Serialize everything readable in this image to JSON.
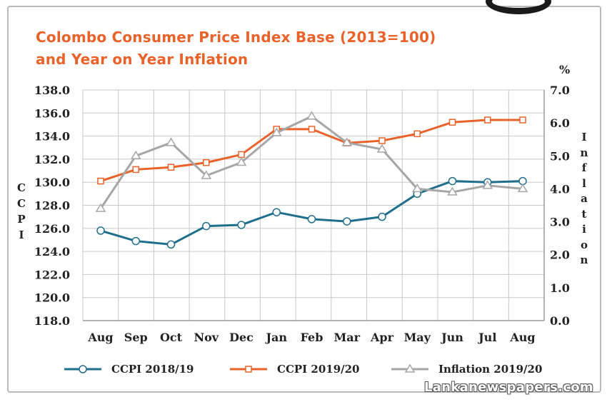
{
  "title_line1": "Colombo Consumer Price Index Base (2013=100)",
  "title_line2": "and Year on Year Inflation",
  "watermark": "Lankanewspapers.com",
  "colors": {
    "title": "#e8622a",
    "ccpi_2018_19": "#1f6e8c",
    "ccpi_2019_20": "#e8622a",
    "inflation_2019_20": "#a6a6a6",
    "grid": "#c8c8c8"
  },
  "chart_data": {
    "type": "line",
    "title": "Colombo Consumer Price Index Base (2013=100) and Year on Year Inflation",
    "categories": [
      "Aug",
      "Sep",
      "Oct",
      "Nov",
      "Dec",
      "Jan",
      "Feb",
      "Mar",
      "Apr",
      "May",
      "Jun",
      "Jul",
      "Aug"
    ],
    "ylabel": "CCPI",
    "ylabel_right": "Inflation",
    "y_right_unit": "%",
    "ylim": [
      118.0,
      138.0
    ],
    "y_ticks": [
      "118.0",
      "120.0",
      "122.0",
      "124.0",
      "126.0",
      "128.0",
      "130.0",
      "132.0",
      "134.0",
      "136.0",
      "138.0"
    ],
    "ylim_right": [
      0.0,
      7.0
    ],
    "y_right_ticks": [
      "0.0",
      "1.0",
      "2.0",
      "3.0",
      "4.0",
      "5.0",
      "6.0",
      "7.0"
    ],
    "grid": true,
    "legend_position": "bottom",
    "series": [
      {
        "name": "CCPI 2018/19",
        "axis": "left",
        "marker": "circle",
        "color": "#1f6e8c",
        "values": [
          125.8,
          124.9,
          124.6,
          126.2,
          126.3,
          127.4,
          126.8,
          126.6,
          127.0,
          129.0,
          130.1,
          130.0,
          130.1
        ]
      },
      {
        "name": "CCPI 2019/20",
        "axis": "left",
        "marker": "square",
        "color": "#e8622a",
        "values": [
          130.1,
          131.1,
          131.3,
          131.7,
          132.4,
          134.6,
          134.6,
          133.4,
          133.6,
          134.2,
          135.2,
          135.4,
          135.4
        ]
      },
      {
        "name": "Inflation 2019/20",
        "axis": "right",
        "marker": "triangle",
        "color": "#a6a6a6",
        "values": [
          3.4,
          5.0,
          5.4,
          4.4,
          4.8,
          5.7,
          6.2,
          5.4,
          5.2,
          4.0,
          3.9,
          4.1,
          4.0
        ]
      }
    ]
  }
}
